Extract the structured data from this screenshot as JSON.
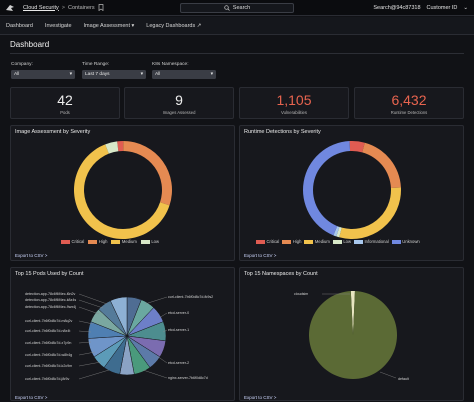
{
  "topbar": {
    "breadcrumb_root": "Cloud Security",
    "breadcrumb_sep": ">",
    "breadcrumb_current": "Containers",
    "search_label": "Search",
    "user": "Search@94c87318",
    "customer_id": "Customer ID",
    "customer_caret": "⌄"
  },
  "navbar": {
    "items": [
      {
        "label": "Dashboard"
      },
      {
        "label": "Investigate"
      },
      {
        "label": "Image Assessment ▾"
      },
      {
        "label": "Legacy Dashboards ↗"
      }
    ]
  },
  "page": {
    "title": "Dashboard"
  },
  "filters": {
    "company": {
      "label": "Company:",
      "value": "All"
    },
    "time_range": {
      "label": "Time Range:",
      "value": "Last 7 days"
    },
    "namespace": {
      "label": "K8s Namespace:",
      "value": "All"
    }
  },
  "stats": [
    {
      "value": "42",
      "label": "Pods"
    },
    {
      "value": "9",
      "label": "Images Assessed"
    },
    {
      "value": "1,105",
      "label": "Vulnerabilities"
    },
    {
      "value": "6,432",
      "label": "Runtime Detections"
    }
  ],
  "colors": {
    "critical": "#e05c52",
    "high": "#e58a52",
    "medium": "#f1c24c",
    "low": "#d8e8c8",
    "informational": "#a9c8ee",
    "unknown": "#7088e0"
  },
  "panels": {
    "image_assessment": {
      "title": "Image Assessment by Severity",
      "export": "Export to CSV >",
      "legend": [
        "Critical",
        "High",
        "Medium",
        "Low"
      ]
    },
    "runtime_detections": {
      "title": "Runtime Detections by Severity",
      "export": "Export to CSV >",
      "legend": [
        "Critical",
        "High",
        "Medium",
        "Low",
        "Informational",
        "Unknown"
      ]
    },
    "top_pods": {
      "title": "Top 15 Pods Used by Count",
      "export": "Export to CSV >",
      "labels_left": [
        "detection-app-78c6f6f4ec-l6n2v",
        "detection-app-78c6f6f4ec-k8z4s",
        "detection-app-78c6f6f4ec-9wx4j",
        "curl-client-7b6f0d8c7d-m8q2v",
        "curl-client-7b6f0d8c7d-n8x4t",
        "curl-client-7b6f0d8c7d-x7p9n",
        "curl-client-7b6f0d8c7d-w8h4g",
        "curl-client-7b6f0d8c7d-k2c9m",
        "curl-client-7b6f0d8c7d-j8r5v"
      ],
      "labels_right": [
        "curl-client-7b6f0d8c7d-fk9s2",
        "etcd-server-0",
        "etcd-server-1",
        "etcd-server-2",
        "nginx-server-7b6f0d8c7d"
      ]
    },
    "top_namespaces": {
      "title": "Top 15 Namespaces by Count",
      "export": "Export to CSV >",
      "label_top": "cloudsim",
      "label_bottom": "default"
    }
  },
  "chart_data": [
    {
      "type": "pie",
      "title": "Image Assessment by Severity",
      "categories": [
        "Critical",
        "High",
        "Medium",
        "Low"
      ],
      "values": [
        2,
        30,
        64,
        4
      ]
    },
    {
      "type": "pie",
      "title": "Runtime Detections by Severity",
      "categories": [
        "Critical",
        "High",
        "Medium",
        "Low",
        "Informational",
        "Unknown"
      ],
      "values": [
        5,
        20,
        30,
        1,
        1,
        43
      ]
    },
    {
      "type": "pie",
      "title": "Top 15 Pods Used by Count",
      "values": [
        6,
        6,
        7,
        8,
        7,
        6,
        7,
        6,
        7,
        6,
        8,
        7,
        6,
        6,
        7
      ],
      "colors": [
        "#4f6d93",
        "#6aa8a0",
        "#6d7fc8",
        "#4d8d8f",
        "#7b6cb0",
        "#5c7aa8",
        "#4a9a7c",
        "#8ba3c4",
        "#3e6c8f",
        "#5c9bb8",
        "#6f95c9",
        "#4f7fb2",
        "#7aa7a0",
        "#557b9a",
        "#8db0d4"
      ]
    },
    {
      "type": "pie",
      "title": "Top 15 Namespaces by Count",
      "categories": [
        "cloudsim",
        "default"
      ],
      "values": [
        1.5,
        98.5
      ],
      "colors": [
        "#e8e6c0",
        "#5b6a35"
      ]
    }
  ]
}
